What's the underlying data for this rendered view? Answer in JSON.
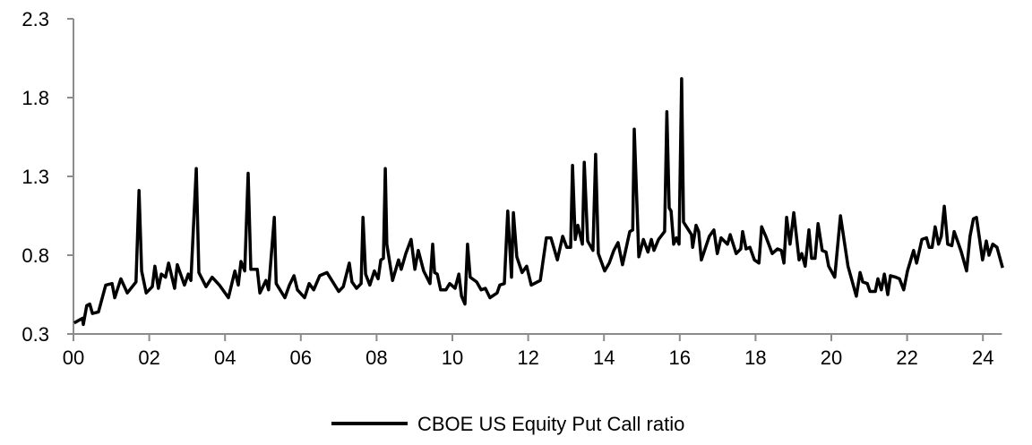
{
  "chart_data": {
    "type": "line",
    "title": "",
    "xlabel": "",
    "ylabel": "",
    "ylim": [
      0.3,
      2.3
    ],
    "xlim": [
      0,
      24.5
    ],
    "yticks": [
      "0.3",
      "0.8",
      "1.3",
      "1.8",
      "2.3"
    ],
    "xticks": [
      "00",
      "02",
      "04",
      "06",
      "08",
      "10",
      "12",
      "14",
      "16",
      "18",
      "20",
      "22",
      "24"
    ],
    "grid": false,
    "legend": "bottom",
    "line_color": "#000000",
    "axis_color": "#8c8c8c",
    "series": [
      {
        "name": "CBOE US Equity Put Call ratio",
        "points": [
          [
            0.02,
            0.37
          ],
          [
            0.24,
            0.4
          ],
          [
            0.26,
            0.36
          ],
          [
            0.35,
            0.48
          ],
          [
            0.43,
            0.49
          ],
          [
            0.5,
            0.43
          ],
          [
            0.66,
            0.44
          ],
          [
            0.85,
            0.61
          ],
          [
            1.02,
            0.62
          ],
          [
            1.09,
            0.53
          ],
          [
            1.25,
            0.65
          ],
          [
            1.42,
            0.56
          ],
          [
            1.65,
            0.63
          ],
          [
            1.73,
            1.21
          ],
          [
            1.8,
            0.7
          ],
          [
            1.92,
            0.56
          ],
          [
            2.08,
            0.6
          ],
          [
            2.15,
            0.73
          ],
          [
            2.24,
            0.59
          ],
          [
            2.32,
            0.68
          ],
          [
            2.43,
            0.66
          ],
          [
            2.51,
            0.75
          ],
          [
            2.67,
            0.59
          ],
          [
            2.74,
            0.74
          ],
          [
            2.93,
            0.61
          ],
          [
            3.03,
            0.68
          ],
          [
            3.1,
            0.64
          ],
          [
            3.24,
            1.35
          ],
          [
            3.31,
            0.69
          ],
          [
            3.5,
            0.6
          ],
          [
            3.66,
            0.66
          ],
          [
            3.85,
            0.61
          ],
          [
            4.09,
            0.53
          ],
          [
            4.26,
            0.7
          ],
          [
            4.35,
            0.61
          ],
          [
            4.42,
            0.76
          ],
          [
            4.52,
            0.7
          ],
          [
            4.61,
            1.32
          ],
          [
            4.68,
            0.71
          ],
          [
            4.85,
            0.71
          ],
          [
            4.92,
            0.56
          ],
          [
            5.08,
            0.64
          ],
          [
            5.15,
            0.58
          ],
          [
            5.3,
            1.04
          ],
          [
            5.35,
            0.62
          ],
          [
            5.58,
            0.53
          ],
          [
            5.7,
            0.61
          ],
          [
            5.82,
            0.67
          ],
          [
            5.91,
            0.58
          ],
          [
            6.1,
            0.53
          ],
          [
            6.22,
            0.62
          ],
          [
            6.34,
            0.58
          ],
          [
            6.5,
            0.67
          ],
          [
            6.69,
            0.69
          ],
          [
            7.0,
            0.57
          ],
          [
            7.12,
            0.6
          ],
          [
            7.28,
            0.75
          ],
          [
            7.35,
            0.63
          ],
          [
            7.47,
            0.59
          ],
          [
            7.59,
            0.62
          ],
          [
            7.64,
            1.04
          ],
          [
            7.71,
            0.68
          ],
          [
            7.82,
            0.61
          ],
          [
            7.94,
            0.7
          ],
          [
            8.04,
            0.65
          ],
          [
            8.11,
            0.77
          ],
          [
            8.18,
            0.78
          ],
          [
            8.23,
            1.35
          ],
          [
            8.27,
            0.87
          ],
          [
            8.42,
            0.64
          ],
          [
            8.58,
            0.77
          ],
          [
            8.65,
            0.71
          ],
          [
            8.77,
            0.81
          ],
          [
            8.91,
            0.9
          ],
          [
            9.01,
            0.71
          ],
          [
            9.1,
            0.83
          ],
          [
            9.24,
            0.7
          ],
          [
            9.41,
            0.62
          ],
          [
            9.48,
            0.87
          ],
          [
            9.53,
            0.69
          ],
          [
            9.6,
            0.68
          ],
          [
            9.69,
            0.58
          ],
          [
            9.83,
            0.58
          ],
          [
            9.93,
            0.62
          ],
          [
            10.07,
            0.59
          ],
          [
            10.17,
            0.68
          ],
          [
            10.24,
            0.54
          ],
          [
            10.33,
            0.49
          ],
          [
            10.4,
            0.87
          ],
          [
            10.47,
            0.66
          ],
          [
            10.64,
            0.63
          ],
          [
            10.76,
            0.58
          ],
          [
            10.87,
            0.59
          ],
          [
            10.99,
            0.53
          ],
          [
            11.18,
            0.56
          ],
          [
            11.25,
            0.61
          ],
          [
            11.37,
            0.62
          ],
          [
            11.46,
            1.08
          ],
          [
            11.56,
            0.66
          ],
          [
            11.61,
            1.07
          ],
          [
            11.7,
            0.79
          ],
          [
            11.84,
            0.69
          ],
          [
            11.96,
            0.73
          ],
          [
            12.08,
            0.61
          ],
          [
            12.32,
            0.64
          ],
          [
            12.48,
            0.91
          ],
          [
            12.6,
            0.91
          ],
          [
            12.77,
            0.77
          ],
          [
            12.91,
            0.92
          ],
          [
            13.02,
            0.85
          ],
          [
            13.12,
            0.85
          ],
          [
            13.17,
            1.37
          ],
          [
            13.24,
            0.9
          ],
          [
            13.31,
            0.99
          ],
          [
            13.43,
            0.87
          ],
          [
            13.48,
            1.39
          ],
          [
            13.57,
            0.89
          ],
          [
            13.71,
            0.83
          ],
          [
            13.78,
            1.44
          ],
          [
            13.85,
            0.81
          ],
          [
            14.02,
            0.7
          ],
          [
            14.14,
            0.75
          ],
          [
            14.26,
            0.83
          ],
          [
            14.37,
            0.88
          ],
          [
            14.49,
            0.74
          ],
          [
            14.68,
            0.95
          ],
          [
            14.76,
            0.96
          ],
          [
            14.8,
            1.6
          ],
          [
            14.92,
            0.79
          ],
          [
            15.04,
            0.9
          ],
          [
            15.16,
            0.82
          ],
          [
            15.25,
            0.9
          ],
          [
            15.32,
            0.83
          ],
          [
            15.44,
            0.9
          ],
          [
            15.6,
            0.95
          ],
          [
            15.66,
            1.71
          ],
          [
            15.72,
            1.1
          ],
          [
            15.77,
            1.08
          ],
          [
            15.84,
            0.87
          ],
          [
            15.91,
            0.91
          ],
          [
            15.98,
            0.87
          ],
          [
            16.05,
            1.92
          ],
          [
            16.1,
            1.01
          ],
          [
            16.31,
            0.93
          ],
          [
            16.34,
            0.85
          ],
          [
            16.43,
            0.99
          ],
          [
            16.5,
            0.95
          ],
          [
            16.57,
            0.77
          ],
          [
            16.78,
            0.92
          ],
          [
            16.9,
            0.96
          ],
          [
            16.99,
            0.81
          ],
          [
            17.09,
            0.91
          ],
          [
            17.26,
            0.87
          ],
          [
            17.33,
            0.93
          ],
          [
            17.49,
            0.81
          ],
          [
            17.61,
            0.84
          ],
          [
            17.66,
            0.95
          ],
          [
            17.75,
            0.84
          ],
          [
            17.85,
            0.85
          ],
          [
            17.97,
            0.77
          ],
          [
            18.09,
            0.75
          ],
          [
            18.16,
            0.98
          ],
          [
            18.27,
            0.92
          ],
          [
            18.44,
            0.81
          ],
          [
            18.58,
            0.84
          ],
          [
            18.68,
            0.83
          ],
          [
            18.75,
            0.75
          ],
          [
            18.82,
            1.04
          ],
          [
            18.91,
            0.87
          ],
          [
            19.01,
            1.07
          ],
          [
            19.15,
            0.77
          ],
          [
            19.22,
            0.81
          ],
          [
            19.31,
            0.73
          ],
          [
            19.41,
            0.96
          ],
          [
            19.48,
            0.78
          ],
          [
            19.57,
            0.78
          ],
          [
            19.65,
            1.0
          ],
          [
            19.76,
            0.83
          ],
          [
            19.86,
            0.82
          ],
          [
            19.93,
            0.73
          ],
          [
            20.09,
            0.66
          ],
          [
            20.24,
            1.05
          ],
          [
            20.44,
            0.73
          ],
          [
            20.66,
            0.54
          ],
          [
            20.76,
            0.69
          ],
          [
            20.83,
            0.63
          ],
          [
            20.95,
            0.62
          ],
          [
            21.02,
            0.57
          ],
          [
            21.16,
            0.57
          ],
          [
            21.23,
            0.65
          ],
          [
            21.32,
            0.58
          ],
          [
            21.4,
            0.68
          ],
          [
            21.49,
            0.55
          ],
          [
            21.56,
            0.67
          ],
          [
            21.7,
            0.66
          ],
          [
            21.8,
            0.65
          ],
          [
            21.91,
            0.58
          ],
          [
            22.01,
            0.7
          ],
          [
            22.17,
            0.83
          ],
          [
            22.25,
            0.75
          ],
          [
            22.39,
            0.9
          ],
          [
            22.51,
            0.91
          ],
          [
            22.58,
            0.85
          ],
          [
            22.66,
            0.85
          ],
          [
            22.74,
            0.98
          ],
          [
            22.83,
            0.87
          ],
          [
            22.9,
            0.92
          ],
          [
            22.98,
            1.11
          ],
          [
            23.07,
            0.87
          ],
          [
            23.18,
            0.86
          ],
          [
            23.24,
            0.95
          ],
          [
            23.36,
            0.87
          ],
          [
            23.43,
            0.82
          ],
          [
            23.57,
            0.7
          ],
          [
            23.66,
            0.92
          ],
          [
            23.75,
            1.03
          ],
          [
            23.83,
            1.04
          ],
          [
            23.99,
            0.77
          ],
          [
            24.09,
            0.89
          ],
          [
            24.16,
            0.8
          ],
          [
            24.26,
            0.87
          ],
          [
            24.37,
            0.85
          ],
          [
            24.52,
            0.72
          ]
        ]
      }
    ]
  }
}
